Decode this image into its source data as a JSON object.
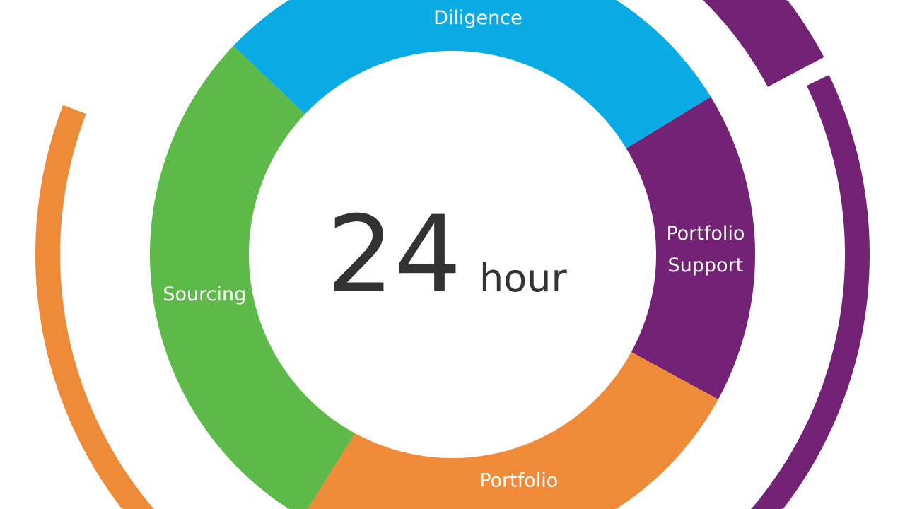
{
  "chart_data": {
    "type": "pie",
    "variant": "donut",
    "center_value": "24",
    "center_unit": "hour",
    "categories": [
      "Diligence",
      "Portfolio Support",
      "Portfolio",
      "Sourcing"
    ],
    "label_lines": [
      [
        "Diligence"
      ],
      [
        "Portfolio",
        "Support"
      ],
      [
        "Portfolio"
      ],
      [
        "Sourcing"
      ]
    ],
    "values": [
      7,
      4,
      6,
      7
    ],
    "colors": [
      "#0aabe4",
      "#732275",
      "#ef8a38",
      "#5db948"
    ],
    "outer_arc_colors": {
      "left": "#ef8a38",
      "right": "#732275"
    }
  }
}
